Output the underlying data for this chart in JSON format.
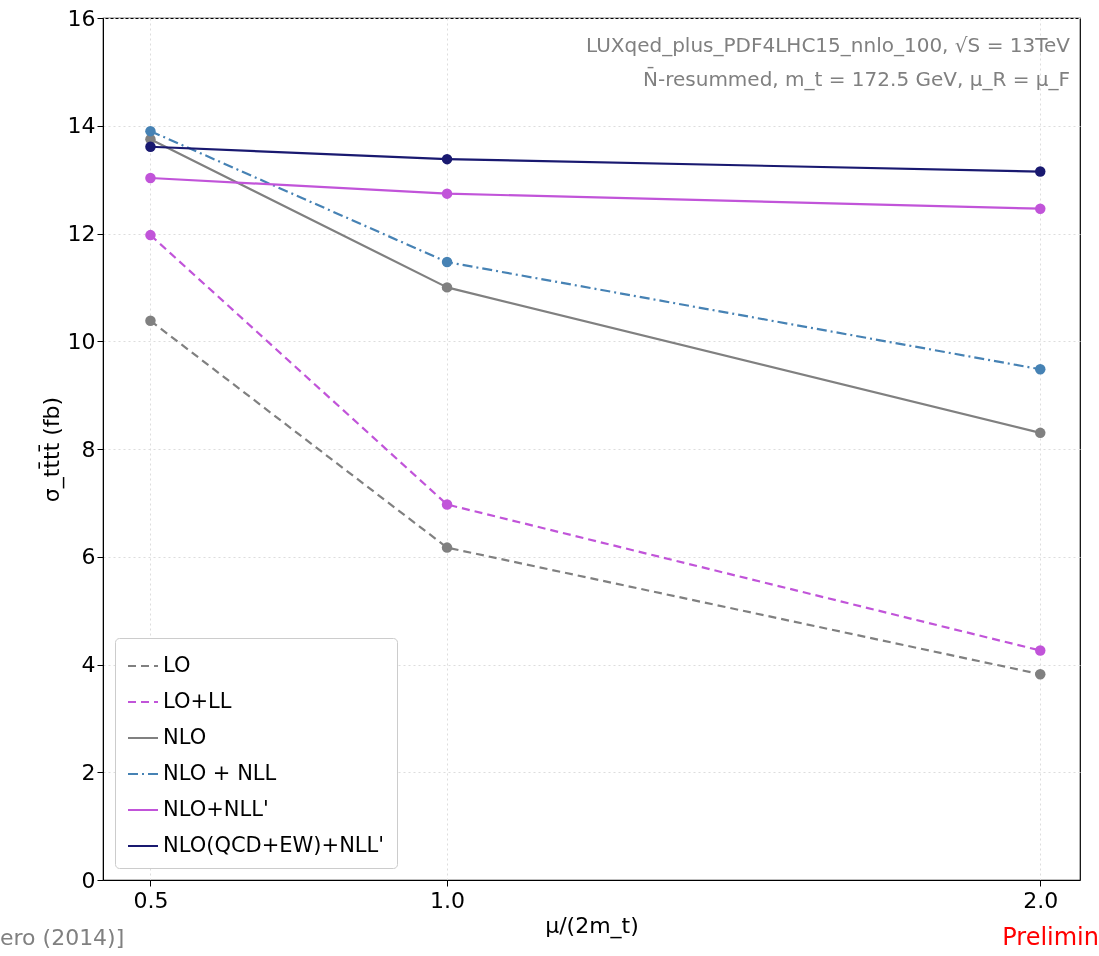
{
  "chart_data": {
    "type": "line",
    "xlabel": "μ/(2m_t)",
    "ylabel": "σ_tt̄tt̄ (fb)",
    "x": [
      0.5,
      1.0,
      2.0
    ],
    "series": [
      {
        "name": "LO",
        "color": "#808080",
        "line_style": "dashed",
        "values": [
          10.38,
          6.17,
          3.82
        ]
      },
      {
        "name": "LO+LL",
        "color": "#c154d9",
        "line_style": "dashed",
        "values": [
          11.97,
          6.97,
          4.26
        ]
      },
      {
        "name": "NLO",
        "color": "#808080",
        "line_style": "solid",
        "values": [
          13.75,
          11.0,
          8.3
        ]
      },
      {
        "name": "NLO + NLL",
        "color": "#4682b4",
        "line_style": "dashdot",
        "values": [
          13.9,
          11.47,
          9.48
        ]
      },
      {
        "name": "NLO+NLL'",
        "color": "#c154d9",
        "line_style": "solid",
        "values": [
          13.03,
          12.74,
          12.46
        ]
      },
      {
        "name": "NLO(QCD+EW)+NLL'",
        "color": "#191970",
        "line_style": "solid",
        "values": [
          13.61,
          13.38,
          13.15
        ]
      }
    ],
    "xlim": [
      0.42,
      2.067
    ],
    "xticks": [
      {
        "value": 0.5,
        "label": "0.5"
      },
      {
        "value": 1.0,
        "label": "1.0"
      },
      {
        "value": 2.0,
        "label": "2.0"
      }
    ],
    "ylim": [
      0,
      16
    ],
    "yticks": [
      0,
      2,
      4,
      6,
      8,
      10,
      12,
      14,
      16
    ],
    "grid": true,
    "legend": "bottom left",
    "marker": "circle",
    "annotations": [
      "LUXqed_plus_PDF4LHC15_nnlo_100, √S = 13TeV",
      "N̄-resummed, m_t = 172.5 GeV, μ_R = μ_F",
      "ero (2014)]",
      "Prelimin"
    ]
  }
}
